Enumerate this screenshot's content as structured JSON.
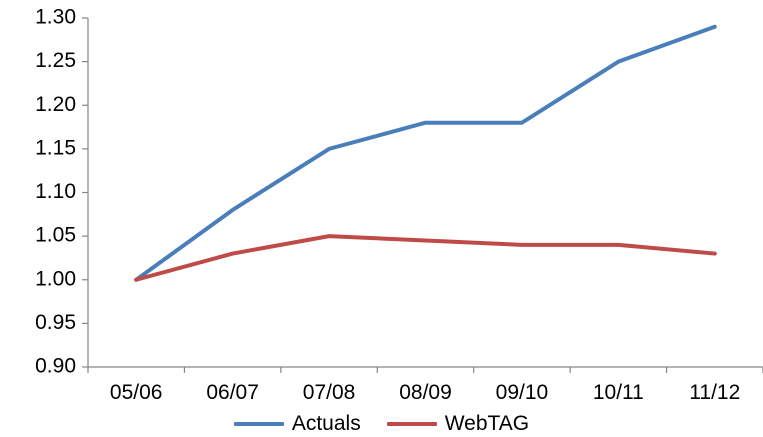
{
  "chart_data": {
    "type": "line",
    "categories": [
      "05/06",
      "06/07",
      "07/08",
      "08/09",
      "09/10",
      "10/11",
      "11/12"
    ],
    "series": [
      {
        "name": "Actuals",
        "color": "#4a7ebb",
        "values": [
          1.0,
          1.08,
          1.15,
          1.18,
          1.18,
          1.25,
          1.29
        ]
      },
      {
        "name": "WebTAG",
        "color": "#be4b48",
        "values": [
          1.0,
          1.03,
          1.05,
          1.045,
          1.04,
          1.04,
          1.03
        ]
      }
    ],
    "y_ticks": [
      "0.90",
      "0.95",
      "1.00",
      "1.05",
      "1.10",
      "1.15",
      "1.20",
      "1.25",
      "1.30"
    ],
    "ylim": [
      0.9,
      1.3
    ],
    "grid": false,
    "legend_position": "bottom",
    "title": "",
    "xlabel": "",
    "ylabel": ""
  }
}
